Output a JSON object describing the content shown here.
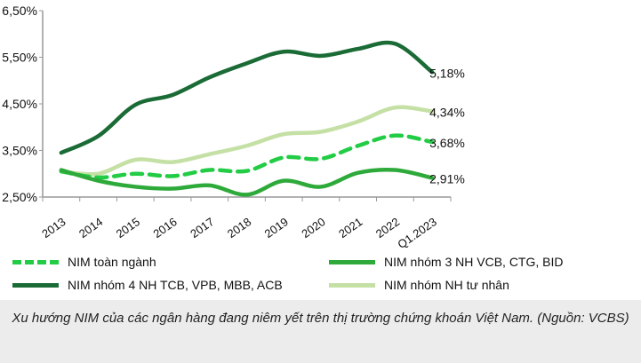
{
  "chart_data": {
    "type": "line",
    "categories": [
      "2013",
      "2014",
      "2015",
      "2016",
      "2017",
      "2018",
      "2019",
      "2020",
      "2021",
      "2022",
      "Q1.2023"
    ],
    "ylim": [
      2.5,
      6.5
    ],
    "yticks": [
      "6,50%",
      "5,50%",
      "4,50%",
      "3,50%",
      "2,50%"
    ],
    "ytick_values": [
      6.5,
      5.5,
      4.5,
      3.5,
      2.5
    ],
    "grid": false,
    "legend_placement": "bottom",
    "series": [
      {
        "name": "NIM toàn ngành",
        "color": "#22cc44",
        "dashed": true,
        "values": [
          3.05,
          2.92,
          3.0,
          2.95,
          3.08,
          3.06,
          3.35,
          3.32,
          3.6,
          3.82,
          3.68
        ],
        "end_label": "3,68%"
      },
      {
        "name": "NIM nhóm 3 NH VCB, CTG, BID",
        "color": "#2eaa3a",
        "dashed": false,
        "values": [
          3.08,
          2.85,
          2.72,
          2.68,
          2.75,
          2.55,
          2.85,
          2.72,
          3.02,
          3.08,
          2.91
        ],
        "end_label": "2,91%"
      },
      {
        "name": "NIM nhóm 4 NH TCB, VPB, MBB, ACB",
        "color": "#1a6b35",
        "dashed": false,
        "values": [
          3.45,
          3.81,
          4.48,
          4.69,
          5.07,
          5.37,
          5.62,
          5.53,
          5.68,
          5.79,
          5.18
        ],
        "end_label": "5,18%"
      },
      {
        "name": "NIM nhóm NH tư nhân",
        "color": "#c5e0a5",
        "dashed": false,
        "values": [
          3.05,
          3.0,
          3.3,
          3.25,
          3.42,
          3.6,
          3.85,
          3.9,
          4.12,
          4.42,
          4.34
        ],
        "end_label": "4,34%"
      }
    ]
  },
  "caption": "Xu hướng NIM của các ngân hàng đang niêm yết trên thị trường chứng khoán Việt Nam. (Nguồn: VCBS)"
}
